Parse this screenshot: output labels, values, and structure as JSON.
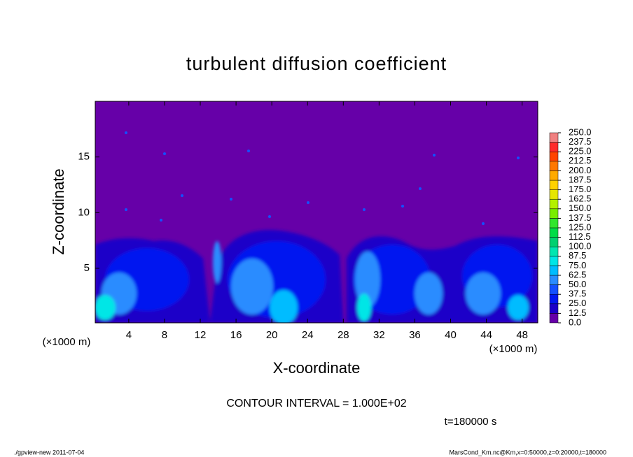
{
  "chart_data": {
    "type": "contour",
    "title": "turbulent diffusion coefficient",
    "x_label": "X-coordinate",
    "y_label": "Z-coordinate",
    "x_unit": "(×1000 m)",
    "x_unit_right": "(×1000 m)",
    "xlim": [
      0.25,
      49.75
    ],
    "ylim": [
      0.1,
      20
    ],
    "xticks": [
      4,
      8,
      12,
      16,
      20,
      24,
      28,
      32,
      36,
      40,
      44,
      48
    ],
    "yticks": [
      5,
      10,
      15
    ],
    "levels": [
      {
        "value": 0,
        "label": "0.0"
      },
      {
        "value": 12.5,
        "label": "12.5"
      },
      {
        "value": 25,
        "label": "25.0"
      },
      {
        "value": 37.5,
        "label": "37.5"
      },
      {
        "value": 50,
        "label": "50.0"
      },
      {
        "value": 62.5,
        "label": "62.5"
      },
      {
        "value": 75,
        "label": "75.0"
      },
      {
        "value": 87.5,
        "label": "87.5"
      },
      {
        "value": 100,
        "label": "100.0"
      },
      {
        "value": 112.5,
        "label": "112.5"
      },
      {
        "value": 125,
        "label": "125.0"
      },
      {
        "value": 137.5,
        "label": "137.5"
      },
      {
        "value": 150,
        "label": "150.0"
      },
      {
        "value": 162.5,
        "label": "162.5"
      },
      {
        "value": 175,
        "label": "175.0"
      },
      {
        "value": 187.5,
        "label": "187.5"
      },
      {
        "value": 200,
        "label": "200.0"
      },
      {
        "value": 212.5,
        "label": "212.5"
      },
      {
        "value": 225,
        "label": "225.0"
      },
      {
        "value": 237.5,
        "label": "237.5"
      },
      {
        "value": 250,
        "label": "250.0"
      }
    ],
    "colors": [
      "#6600a8",
      "#1c00c8",
      "#0018f0",
      "#1450ff",
      "#2a8cff",
      "#00bcff",
      "#00e6e6",
      "#00e6b0",
      "#00d070",
      "#00dc46",
      "#30e62c",
      "#78ee00",
      "#b4f000",
      "#e6e600",
      "#ffd200",
      "#ffaa00",
      "#ff7800",
      "#ff4400",
      "#ff2a2a",
      "#f08080"
    ],
    "contour_interval": "CONTOUR INTERVAL = 1.000E+02",
    "time_label": "t=180000 s",
    "footer_left": "./gpview-new  2011-07-04",
    "footer_right": "MarsCond_Km.nc@Km,x=0:50000,z=0:20000,t=180000"
  }
}
